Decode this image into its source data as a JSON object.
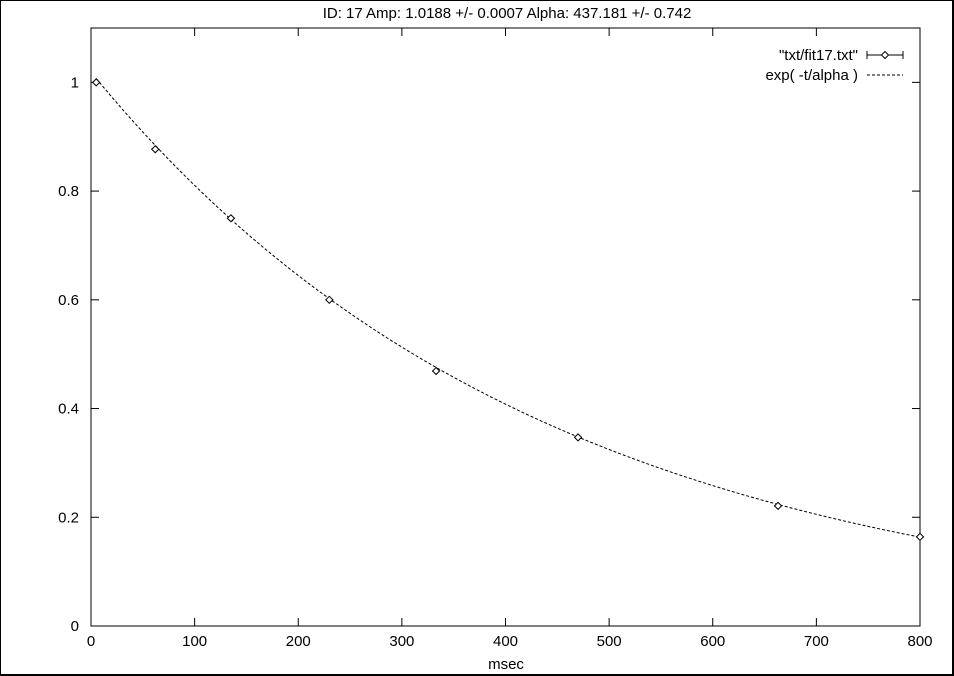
{
  "chart_data": {
    "type": "scatter",
    "title": "ID: 17 Amp: 1.0188 +/- 0.0007 Alpha: 437.181 +/- 0.742",
    "xlabel": "msec",
    "ylabel": "",
    "xlim": [
      0,
      800
    ],
    "ylim": [
      0,
      1.1
    ],
    "xticks": [
      0,
      100,
      200,
      300,
      400,
      500,
      600,
      700,
      800
    ],
    "yticks": [
      0,
      0.2,
      0.4,
      0.6,
      0.8,
      1
    ],
    "grid": false,
    "legend_position": "top-right",
    "series": [
      {
        "name": "\"txt/fit17.txt\"",
        "style": "points-with-errorbars",
        "marker": "diamond",
        "x": [
          5,
          62,
          135,
          230,
          333,
          470,
          663,
          800
        ],
        "y": [
          1.0,
          0.877,
          0.75,
          0.6,
          0.469,
          0.347,
          0.221,
          0.164
        ]
      },
      {
        "name": "exp( -t/alpha )",
        "style": "dashed-line",
        "function": {
          "amp": 1.0188,
          "alpha": 437.181
        }
      }
    ]
  },
  "colors": {
    "axis": "#000000",
    "background": "#ffffff"
  }
}
